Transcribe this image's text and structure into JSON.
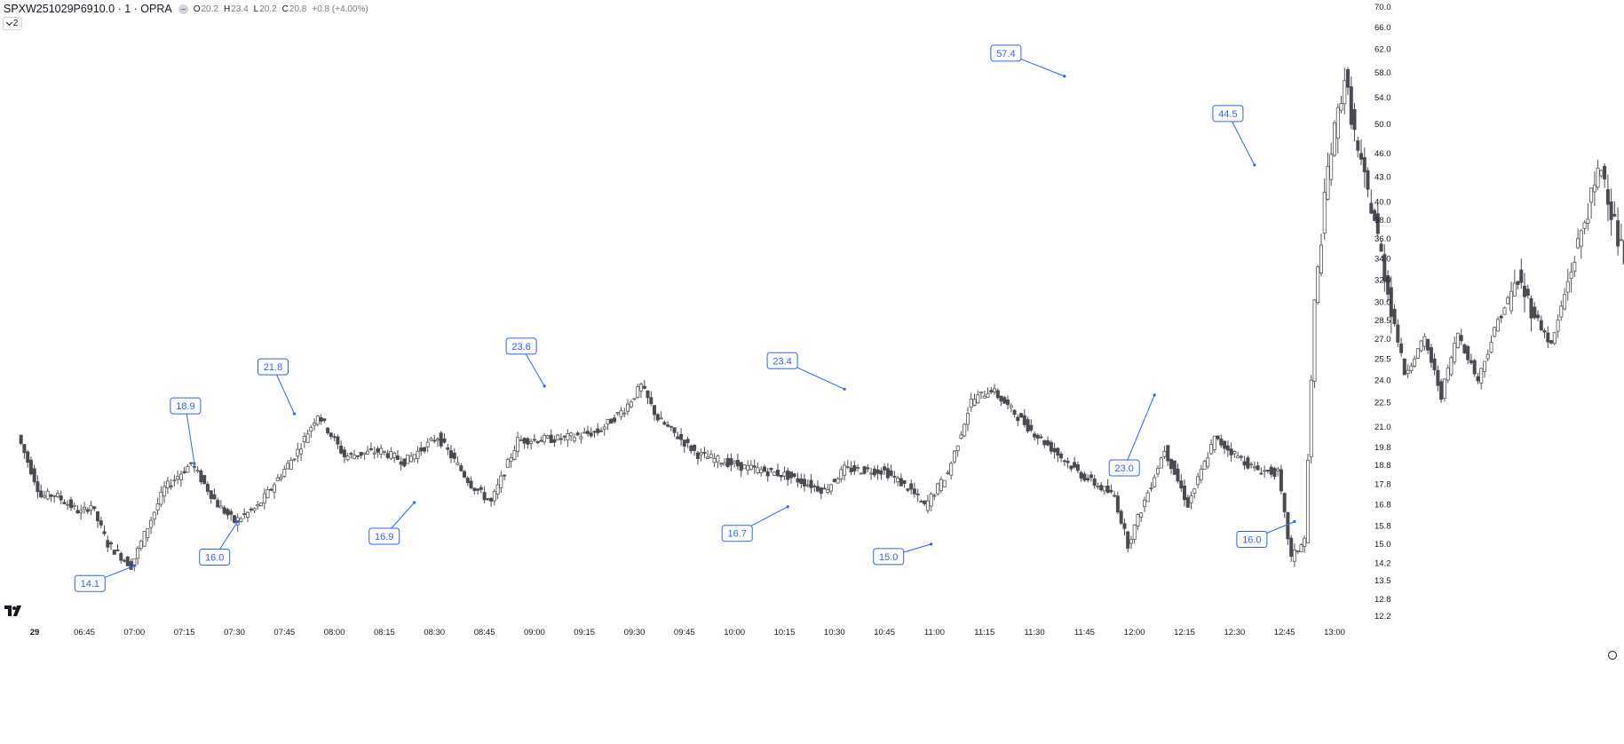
{
  "header": {
    "symbol": "SPXW251029P6910.0 · 1 · OPRA",
    "open_key": "O",
    "open_val": "20.2",
    "high_key": "H",
    "high_val": "23.4",
    "low_key": "L",
    "low_val": "20.2",
    "close_key": "C",
    "close_val": "20.8",
    "change": "+0.8 (+4.00%)",
    "legend_count": "2"
  },
  "colors": {
    "label": "#2962ff",
    "down": "#4a4a52",
    "up_border": "#555555",
    "text_muted": "#787b86"
  },
  "icons": {
    "logo": "tradingview-logo-icon",
    "settings": "gear-icon",
    "visibility": "eye-icon",
    "legend_toggle": "chevron-down-icon"
  },
  "chart_data": {
    "type": "candlestick",
    "y_scale": "log",
    "y_ticks": [
      "70.0",
      "66.0",
      "62.0",
      "58.0",
      "54.0",
      "50.0",
      "46.0",
      "43.0",
      "40.0",
      "38.0",
      "36.0",
      "34.0",
      "32.0",
      "30.0",
      "28.5",
      "27.0",
      "25.5",
      "24.0",
      "22.5",
      "21.0",
      "19.8",
      "18.8",
      "17.8",
      "16.8",
      "15.8",
      "15.0",
      "14.2",
      "13.5",
      "12.8",
      "12.2"
    ],
    "x_ticks": [
      "29",
      "06:45",
      "07:00",
      "07:15",
      "07:30",
      "07:45",
      "08:00",
      "08:15",
      "08:30",
      "08:45",
      "09:00",
      "09:15",
      "09:30",
      "09:45",
      "10:00",
      "10:15",
      "10:30",
      "10:45",
      "11:00",
      "11:15",
      "11:30",
      "11:45",
      "12:00",
      "12:15",
      "12:30",
      "12:45",
      "13:00"
    ],
    "pivots": [
      {
        "label": "14.1",
        "time": "07:00",
        "value": 14.1,
        "type": "low"
      },
      {
        "label": "18.9",
        "time": "07:18",
        "value": 18.9,
        "type": "high"
      },
      {
        "label": "16.0",
        "time": "07:31",
        "value": 16.0,
        "type": "low"
      },
      {
        "label": "21.8",
        "time": "07:48",
        "value": 21.8,
        "type": "high"
      },
      {
        "label": "16.9",
        "time": "08:24",
        "value": 16.9,
        "type": "low"
      },
      {
        "label": "23.6",
        "time": "09:03",
        "value": 23.6,
        "type": "high"
      },
      {
        "label": "16.7",
        "time": "10:16",
        "value": 16.7,
        "type": "low"
      },
      {
        "label": "23.4",
        "time": "10:33",
        "value": 23.4,
        "type": "high"
      },
      {
        "label": "15.0",
        "time": "10:59",
        "value": 15.0,
        "type": "low"
      },
      {
        "label": "57.4",
        "time": "11:39",
        "value": 57.4,
        "type": "high"
      },
      {
        "label": "23.0",
        "time": "12:06",
        "value": 23.0,
        "type": "low"
      },
      {
        "label": "44.5",
        "time": "12:36",
        "value": 44.5,
        "type": "high"
      },
      {
        "label": "16.0",
        "time": "12:48",
        "value": 16.0,
        "type": "low"
      }
    ]
  }
}
